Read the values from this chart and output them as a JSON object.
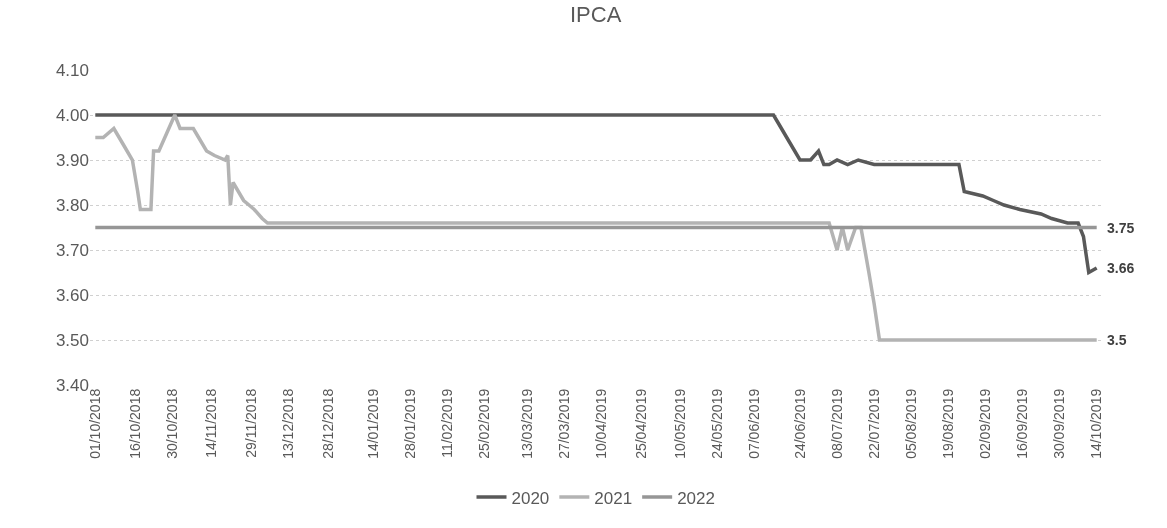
{
  "chart_data": {
    "type": "line",
    "title": "IPCA",
    "grid": "y",
    "legend": "bottom",
    "line_style": "solid",
    "marker": "none",
    "xlim": [
      "2018-09-29",
      "2019-10-16"
    ],
    "xticks": [
      {
        "value": "2018-10-01",
        "label": "01/10/2018"
      },
      {
        "value": "2018-10-16",
        "label": "16/10/2018"
      },
      {
        "value": "2018-10-30",
        "label": "30/10/2018"
      },
      {
        "value": "2018-11-14",
        "label": "14/11/2018"
      },
      {
        "value": "2018-11-29",
        "label": "29/11/2018"
      },
      {
        "value": "2018-12-13",
        "label": "13/12/2018"
      },
      {
        "value": "2018-12-28",
        "label": "28/12/2018"
      },
      {
        "value": "2019-01-14",
        "label": "14/01/2019"
      },
      {
        "value": "2019-01-28",
        "label": "28/01/2019"
      },
      {
        "value": "2019-02-11",
        "label": "11/02/2019"
      },
      {
        "value": "2019-02-25",
        "label": "25/02/2019"
      },
      {
        "value": "2019-03-13",
        "label": "13/03/2019"
      },
      {
        "value": "2019-03-27",
        "label": "27/03/2019"
      },
      {
        "value": "2019-04-10",
        "label": "10/04/2019"
      },
      {
        "value": "2019-04-25",
        "label": "25/04/2019"
      },
      {
        "value": "2019-05-10",
        "label": "10/05/2019"
      },
      {
        "value": "2019-05-24",
        "label": "24/05/2019"
      },
      {
        "value": "2019-06-07",
        "label": "07/06/2019"
      },
      {
        "value": "2019-06-24",
        "label": "24/06/2019"
      },
      {
        "value": "2019-07-08",
        "label": "08/07/2019"
      },
      {
        "value": "2019-07-22",
        "label": "22/07/2019"
      },
      {
        "value": "2019-08-05",
        "label": "05/08/2019"
      },
      {
        "value": "2019-08-19",
        "label": "19/08/2019"
      },
      {
        "value": "2019-09-02",
        "label": "02/09/2019"
      },
      {
        "value": "2019-09-16",
        "label": "16/09/2019"
      },
      {
        "value": "2019-09-30",
        "label": "30/09/2019"
      },
      {
        "value": "2019-10-14",
        "label": "14/10/2019"
      }
    ],
    "ylim": [
      3.4,
      4.1
    ],
    "yticks": [
      {
        "value": 3.4,
        "label": "3.40"
      },
      {
        "value": 3.5,
        "label": "3.50"
      },
      {
        "value": 3.6,
        "label": "3.60"
      },
      {
        "value": 3.7,
        "label": "3.70"
      },
      {
        "value": 3.8,
        "label": "3.80"
      },
      {
        "value": 3.9,
        "label": "3.90"
      },
      {
        "value": 4.0,
        "label": "4.00"
      },
      {
        "value": 4.1,
        "label": "4.10"
      }
    ],
    "series": [
      {
        "name": "2020",
        "color": "#595959",
        "x": [
          "2018-10-01",
          "2019-06-14",
          "2019-06-16",
          "2019-06-20",
          "2019-06-24",
          "2019-06-28",
          "2019-07-01",
          "2019-07-03",
          "2019-07-05",
          "2019-07-08",
          "2019-07-12",
          "2019-07-16",
          "2019-07-22",
          "2019-08-23",
          "2019-08-25",
          "2019-09-01",
          "2019-09-05",
          "2019-09-09",
          "2019-09-15",
          "2019-09-23",
          "2019-09-27",
          "2019-10-03",
          "2019-10-07",
          "2019-10-09",
          "2019-10-11",
          "2019-10-14"
        ],
        "values": [
          4.0,
          4.0,
          3.98,
          3.94,
          3.9,
          3.9,
          3.92,
          3.89,
          3.89,
          3.9,
          3.89,
          3.9,
          3.89,
          3.89,
          3.83,
          3.82,
          3.81,
          3.8,
          3.79,
          3.78,
          3.77,
          3.76,
          3.76,
          3.73,
          3.65,
          3.66
        ]
      },
      {
        "name": "2021",
        "color": "#b3b3b3",
        "x": [
          "2018-10-01",
          "2018-10-04",
          "2018-10-08",
          "2018-10-12",
          "2018-10-15",
          "2018-10-17",
          "2018-10-18",
          "2018-10-22",
          "2018-10-23",
          "2018-10-25",
          "2018-10-28",
          "2018-10-31",
          "2018-11-02",
          "2018-11-07",
          "2018-11-09",
          "2018-11-12",
          "2018-11-15",
          "2018-11-19",
          "2018-11-20",
          "2018-11-21",
          "2018-11-22",
          "2018-11-26",
          "2018-11-28",
          "2018-11-30",
          "2018-12-03",
          "2018-12-05",
          "2019-07-05",
          "2019-07-08",
          "2019-07-10",
          "2019-07-12",
          "2019-07-15",
          "2019-07-17",
          "2019-07-20",
          "2019-07-22",
          "2019-07-24",
          "2019-10-14"
        ],
        "values": [
          3.95,
          3.95,
          3.97,
          3.93,
          3.9,
          3.83,
          3.79,
          3.79,
          3.92,
          3.92,
          3.96,
          4.0,
          3.97,
          3.97,
          3.95,
          3.92,
          3.91,
          3.9,
          3.91,
          3.8,
          3.85,
          3.81,
          3.8,
          3.79,
          3.77,
          3.76,
          3.76,
          3.7,
          3.75,
          3.7,
          3.75,
          3.75,
          3.65,
          3.58,
          3.5,
          3.5
        ]
      },
      {
        "name": "2022",
        "color": "#969696",
        "x": [
          "2018-10-01",
          "2019-10-14"
        ],
        "values": [
          3.75,
          3.75
        ]
      }
    ],
    "annotations": [
      {
        "text": "3.75",
        "x": "2019-10-14",
        "y": 3.75
      },
      {
        "text": "3.66",
        "x": "2019-10-14",
        "y": 3.66
      },
      {
        "text": "3.5",
        "x": "2019-10-14",
        "y": 3.5
      }
    ]
  }
}
